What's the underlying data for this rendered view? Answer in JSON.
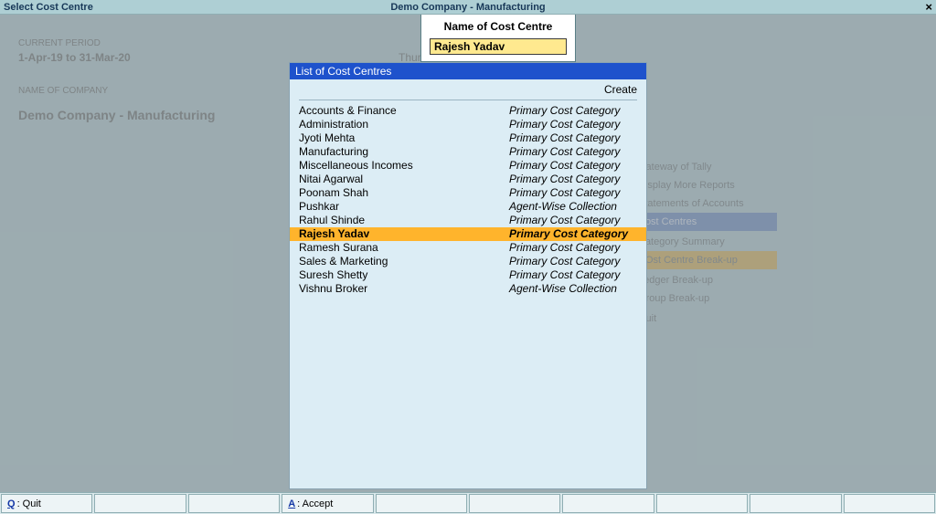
{
  "titlebar": {
    "left": "Select Cost Centre",
    "center": "Demo Company - Manufacturing",
    "close": "×"
  },
  "background": {
    "period_label": "CURRENT PERIOD",
    "period_value": "1-Apr-19 to 31-Mar-20",
    "day": "Thursday",
    "company_label": "NAME OF COMPANY",
    "company_value": "Demo Company - Manufacturing",
    "menu": {
      "items": [
        "Gateway of Tally",
        "Display More Reports",
        "Statements of Accounts",
        "Cost Centres",
        "",
        "Category Summary",
        "COst Centre Break-up",
        "",
        "Ledger Break-up",
        "Group Break-up",
        "",
        "Quit"
      ]
    }
  },
  "dialog": {
    "label": "Name of Cost Centre",
    "value": "Rajesh Yadav"
  },
  "list": {
    "header": "List of Cost Centres",
    "create": "Create",
    "selected_index": 9,
    "items": [
      {
        "name": "Accounts & Finance",
        "category": "Primary Cost Category"
      },
      {
        "name": "Administration",
        "category": "Primary Cost Category"
      },
      {
        "name": "Jyoti Mehta",
        "category": "Primary Cost Category"
      },
      {
        "name": "Manufacturing",
        "category": "Primary Cost Category"
      },
      {
        "name": "Miscellaneous Incomes",
        "category": "Primary Cost Category"
      },
      {
        "name": "Nitai Agarwal",
        "category": "Primary Cost Category"
      },
      {
        "name": "Poonam Shah",
        "category": "Primary Cost Category"
      },
      {
        "name": "Pushkar",
        "category": "Agent-Wise Collection"
      },
      {
        "name": "Rahul Shinde",
        "category": "Primary Cost Category"
      },
      {
        "name": "Rajesh Yadav",
        "category": "Primary Cost Category"
      },
      {
        "name": "Ramesh Surana",
        "category": "Primary Cost Category"
      },
      {
        "name": "Sales & Marketing",
        "category": "Primary Cost Category"
      },
      {
        "name": "Suresh Shetty",
        "category": "Primary Cost Category"
      },
      {
        "name": "Vishnu Broker",
        "category": "Agent-Wise Collection"
      }
    ]
  },
  "bottombar": {
    "quit_key": "Q",
    "quit_label": ": Quit",
    "accept_key": "A",
    "accept_label": ": Accept"
  },
  "colors": {
    "page_bg": "#c2d6da",
    "titlebar_bg": "#aecfd4",
    "panel_bg": "#dcedf5",
    "panel_header_bg": "#1e52cc",
    "highlight_bg": "#ffb42c",
    "input_bg": "#ffe98f"
  }
}
